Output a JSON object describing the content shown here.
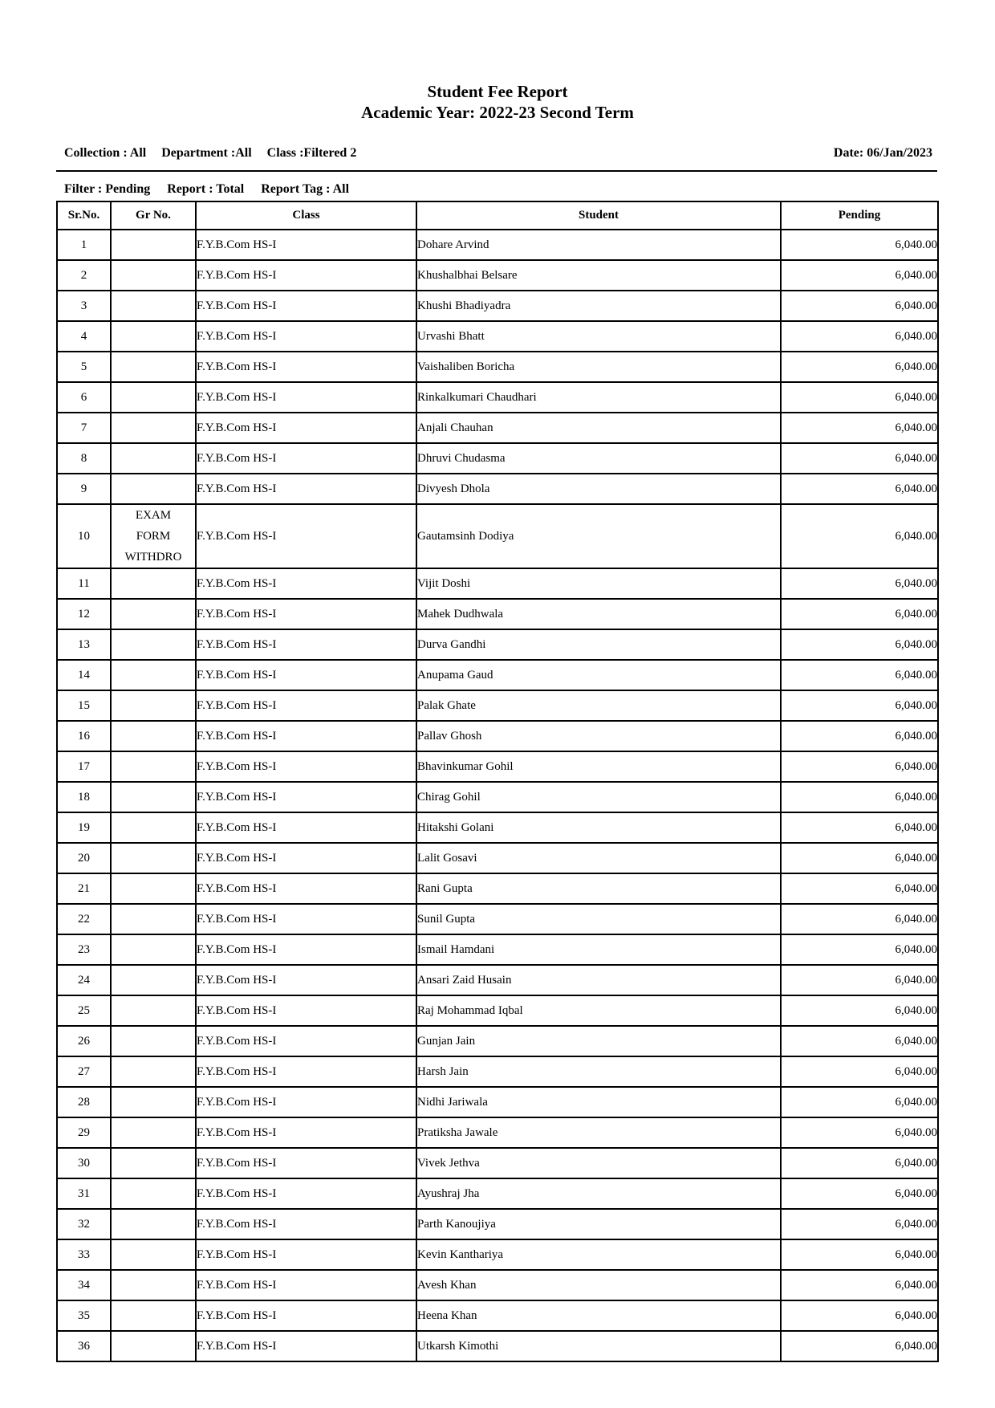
{
  "report": {
    "title": "Student Fee Report",
    "subtitle": "Academic Year: 2022-23 Second Term"
  },
  "meta": {
    "collection": "Collection : All",
    "department": "Department :All",
    "class": "Class :Filtered 2",
    "date": "Date: 06/Jan/2023",
    "filter": "Filter : Pending",
    "report": "Report : Total",
    "report_tag": "Report Tag : All"
  },
  "table": {
    "columns": [
      "Sr.No.",
      "Gr No.",
      "Class",
      "Student",
      "Pending"
    ],
    "rows": [
      {
        "sr": "1",
        "gr_no": "",
        "class": "F.Y.B.Com HS-I",
        "student": "Dohare Arvind",
        "pending": "6,040.00"
      },
      {
        "sr": "2",
        "gr_no": "",
        "class": "F.Y.B.Com HS-I",
        "student": "Khushalbhai Belsare",
        "pending": "6,040.00"
      },
      {
        "sr": "3",
        "gr_no": "",
        "class": "F.Y.B.Com HS-I",
        "student": "Khushi Bhadiyadra",
        "pending": "6,040.00"
      },
      {
        "sr": "4",
        "gr_no": "",
        "class": "F.Y.B.Com HS-I",
        "student": "Urvashi Bhatt",
        "pending": "6,040.00"
      },
      {
        "sr": "5",
        "gr_no": "",
        "class": "F.Y.B.Com HS-I",
        "student": "Vaishaliben Boricha",
        "pending": "6,040.00"
      },
      {
        "sr": "6",
        "gr_no": "",
        "class": "F.Y.B.Com HS-I",
        "student": "Rinkalkumari Chaudhari",
        "pending": "6,040.00"
      },
      {
        "sr": "7",
        "gr_no": "",
        "class": "F.Y.B.Com HS-I",
        "student": "Anjali Chauhan",
        "pending": "6,040.00"
      },
      {
        "sr": "8",
        "gr_no": "",
        "class": "F.Y.B.Com HS-I",
        "student": "Dhruvi Chudasma",
        "pending": "6,040.00"
      },
      {
        "sr": "9",
        "gr_no": "",
        "class": "F.Y.B.Com HS-I",
        "student": "Divyesh Dhola",
        "pending": "6,040.00"
      },
      {
        "sr": "10",
        "gr_no": "EXAM\nFORM\nWITHDRO",
        "class": "F.Y.B.Com HS-I",
        "student": "Gautamsinh Dodiya",
        "pending": "6,040.00"
      },
      {
        "sr": "11",
        "gr_no": "",
        "class": "F.Y.B.Com HS-I",
        "student": "Vijit Doshi",
        "pending": "6,040.00"
      },
      {
        "sr": "12",
        "gr_no": "",
        "class": "F.Y.B.Com HS-I",
        "student": "Mahek Dudhwala",
        "pending": "6,040.00"
      },
      {
        "sr": "13",
        "gr_no": "",
        "class": "F.Y.B.Com HS-I",
        "student": "Durva Gandhi",
        "pending": "6,040.00"
      },
      {
        "sr": "14",
        "gr_no": "",
        "class": "F.Y.B.Com HS-I",
        "student": "Anupama Gaud",
        "pending": "6,040.00"
      },
      {
        "sr": "15",
        "gr_no": "",
        "class": "F.Y.B.Com HS-I",
        "student": "Palak Ghate",
        "pending": "6,040.00"
      },
      {
        "sr": "16",
        "gr_no": "",
        "class": "F.Y.B.Com HS-I",
        "student": "Pallav Ghosh",
        "pending": "6,040.00"
      },
      {
        "sr": "17",
        "gr_no": "",
        "class": "F.Y.B.Com HS-I",
        "student": "Bhavinkumar Gohil",
        "pending": "6,040.00"
      },
      {
        "sr": "18",
        "gr_no": "",
        "class": "F.Y.B.Com HS-I",
        "student": "Chirag Gohil",
        "pending": "6,040.00"
      },
      {
        "sr": "19",
        "gr_no": "",
        "class": "F.Y.B.Com HS-I",
        "student": "Hitakshi Golani",
        "pending": "6,040.00"
      },
      {
        "sr": "20",
        "gr_no": "",
        "class": "F.Y.B.Com HS-I",
        "student": "Lalit Gosavi",
        "pending": "6,040.00"
      },
      {
        "sr": "21",
        "gr_no": "",
        "class": "F.Y.B.Com HS-I",
        "student": "Rani Gupta",
        "pending": "6,040.00"
      },
      {
        "sr": "22",
        "gr_no": "",
        "class": "F.Y.B.Com HS-I",
        "student": "Sunil Gupta",
        "pending": "6,040.00"
      },
      {
        "sr": "23",
        "gr_no": "",
        "class": "F.Y.B.Com HS-I",
        "student": "Ismail Hamdani",
        "pending": "6,040.00"
      },
      {
        "sr": "24",
        "gr_no": "",
        "class": "F.Y.B.Com HS-I",
        "student": "Ansari Zaid Husain",
        "pending": "6,040.00"
      },
      {
        "sr": "25",
        "gr_no": "",
        "class": "F.Y.B.Com HS-I",
        "student": "Raj Mohammad Iqbal",
        "pending": "6,040.00"
      },
      {
        "sr": "26",
        "gr_no": "",
        "class": "F.Y.B.Com HS-I",
        "student": "Gunjan Jain",
        "pending": "6,040.00"
      },
      {
        "sr": "27",
        "gr_no": "",
        "class": "F.Y.B.Com HS-I",
        "student": "Harsh Jain",
        "pending": "6,040.00"
      },
      {
        "sr": "28",
        "gr_no": "",
        "class": "F.Y.B.Com HS-I",
        "student": "Nidhi Jariwala",
        "pending": "6,040.00"
      },
      {
        "sr": "29",
        "gr_no": "",
        "class": "F.Y.B.Com HS-I",
        "student": "Pratiksha Jawale",
        "pending": "6,040.00"
      },
      {
        "sr": "30",
        "gr_no": "",
        "class": "F.Y.B.Com HS-I",
        "student": "Vivek Jethva",
        "pending": "6,040.00"
      },
      {
        "sr": "31",
        "gr_no": "",
        "class": "F.Y.B.Com HS-I",
        "student": "Ayushraj Jha",
        "pending": "6,040.00"
      },
      {
        "sr": "32",
        "gr_no": "",
        "class": "F.Y.B.Com HS-I",
        "student": "Parth Kanoujiya",
        "pending": "6,040.00"
      },
      {
        "sr": "33",
        "gr_no": "",
        "class": "F.Y.B.Com HS-I",
        "student": "Kevin Kanthariya",
        "pending": "6,040.00"
      },
      {
        "sr": "34",
        "gr_no": "",
        "class": "F.Y.B.Com HS-I",
        "student": "Avesh Khan",
        "pending": "6,040.00"
      },
      {
        "sr": "35",
        "gr_no": "",
        "class": "F.Y.B.Com HS-I",
        "student": "Heena Khan",
        "pending": "6,040.00"
      },
      {
        "sr": "36",
        "gr_no": "",
        "class": "F.Y.B.Com HS-I",
        "student": "Utkarsh Kimothi",
        "pending": "6,040.00"
      }
    ]
  }
}
